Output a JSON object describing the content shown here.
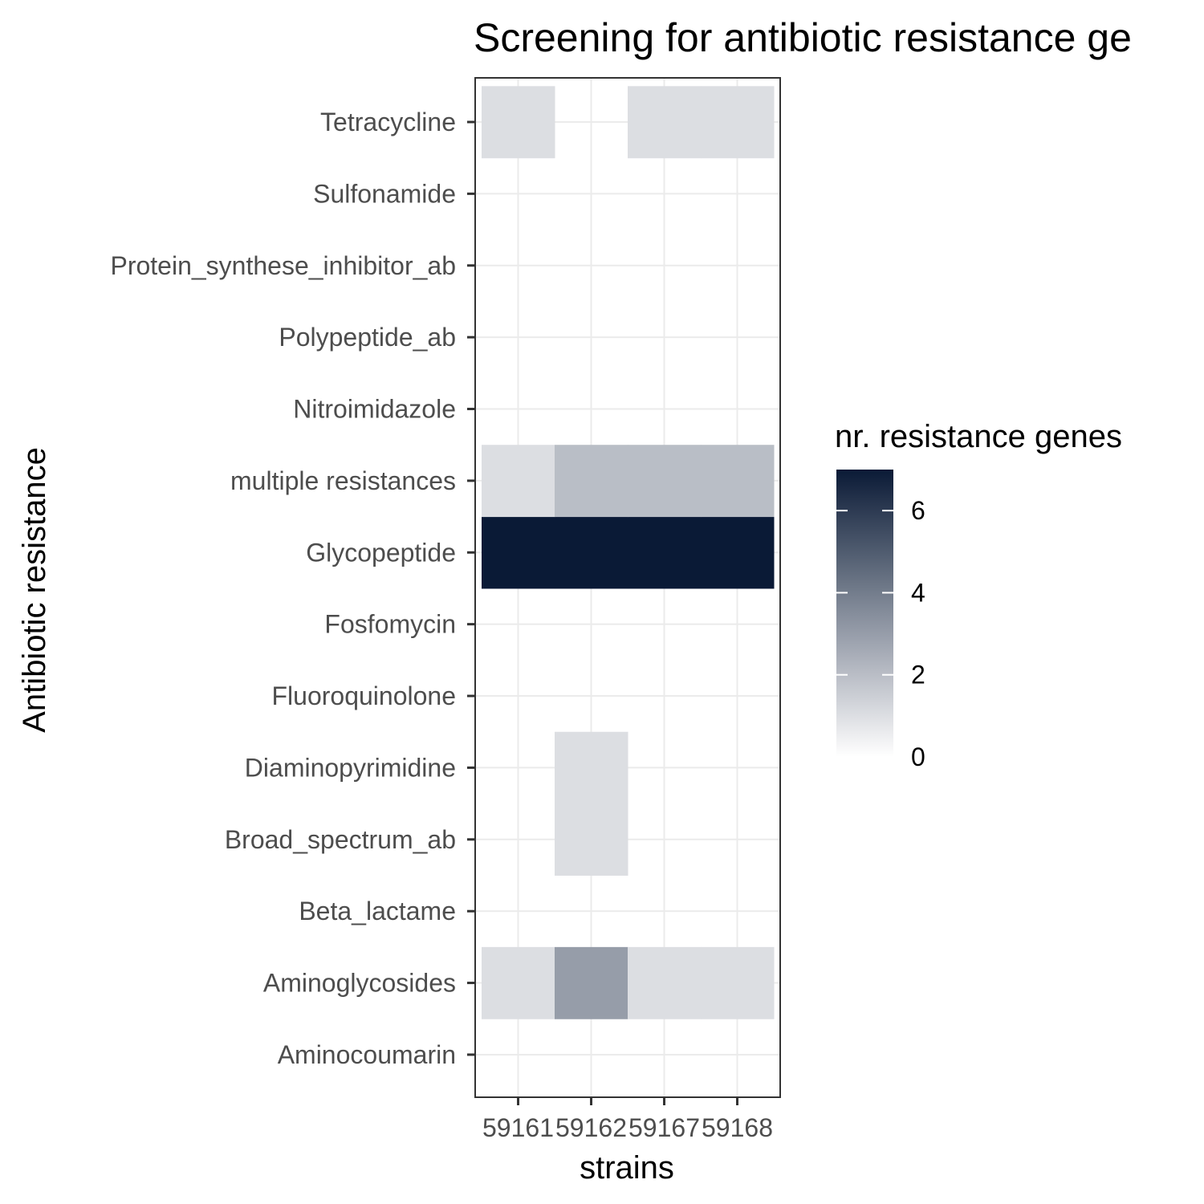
{
  "chart_data": {
    "type": "heatmap",
    "title": "Screening for antibiotic resistance ge",
    "xlabel": "strains",
    "ylabel": "Antibiotic resistance",
    "x_categories": [
      "59161",
      "59162",
      "59167",
      "59168"
    ],
    "y_categories": [
      "Aminocoumarin",
      "Aminoglycosides",
      "Beta_lactame",
      "Broad_spectrum_ab",
      "Diaminopyrimidine",
      "Fluoroquinolone",
      "Fosfomycin",
      "Glycopeptide",
      "multiple resistances",
      "Nitroimidazole",
      "Polypeptide_ab",
      "Protein_synthese_inhibitor_ab",
      "Sulfonamide",
      "Tetracycline"
    ],
    "values": [
      [
        0,
        0,
        0,
        0
      ],
      [
        1,
        3,
        1,
        1
      ],
      [
        0,
        0,
        0,
        0
      ],
      [
        0,
        1,
        0,
        0
      ],
      [
        0,
        1,
        0,
        0
      ],
      [
        0,
        0,
        0,
        0
      ],
      [
        0,
        0,
        0,
        0
      ],
      [
        7,
        7,
        7,
        7
      ],
      [
        1,
        2,
        2,
        2
      ],
      [
        0,
        0,
        0,
        0
      ],
      [
        0,
        0,
        0,
        0
      ],
      [
        0,
        0,
        0,
        0
      ],
      [
        0,
        0,
        0,
        0
      ],
      [
        1,
        0,
        1,
        1
      ]
    ],
    "legend": {
      "title": "nr. resistance genes",
      "breaks": [
        0,
        2,
        4,
        6
      ],
      "limits": [
        0,
        7
      ],
      "low_color": "#ffffff",
      "high_color": "#0a1a36"
    },
    "grid": true,
    "legend_position": "right"
  }
}
